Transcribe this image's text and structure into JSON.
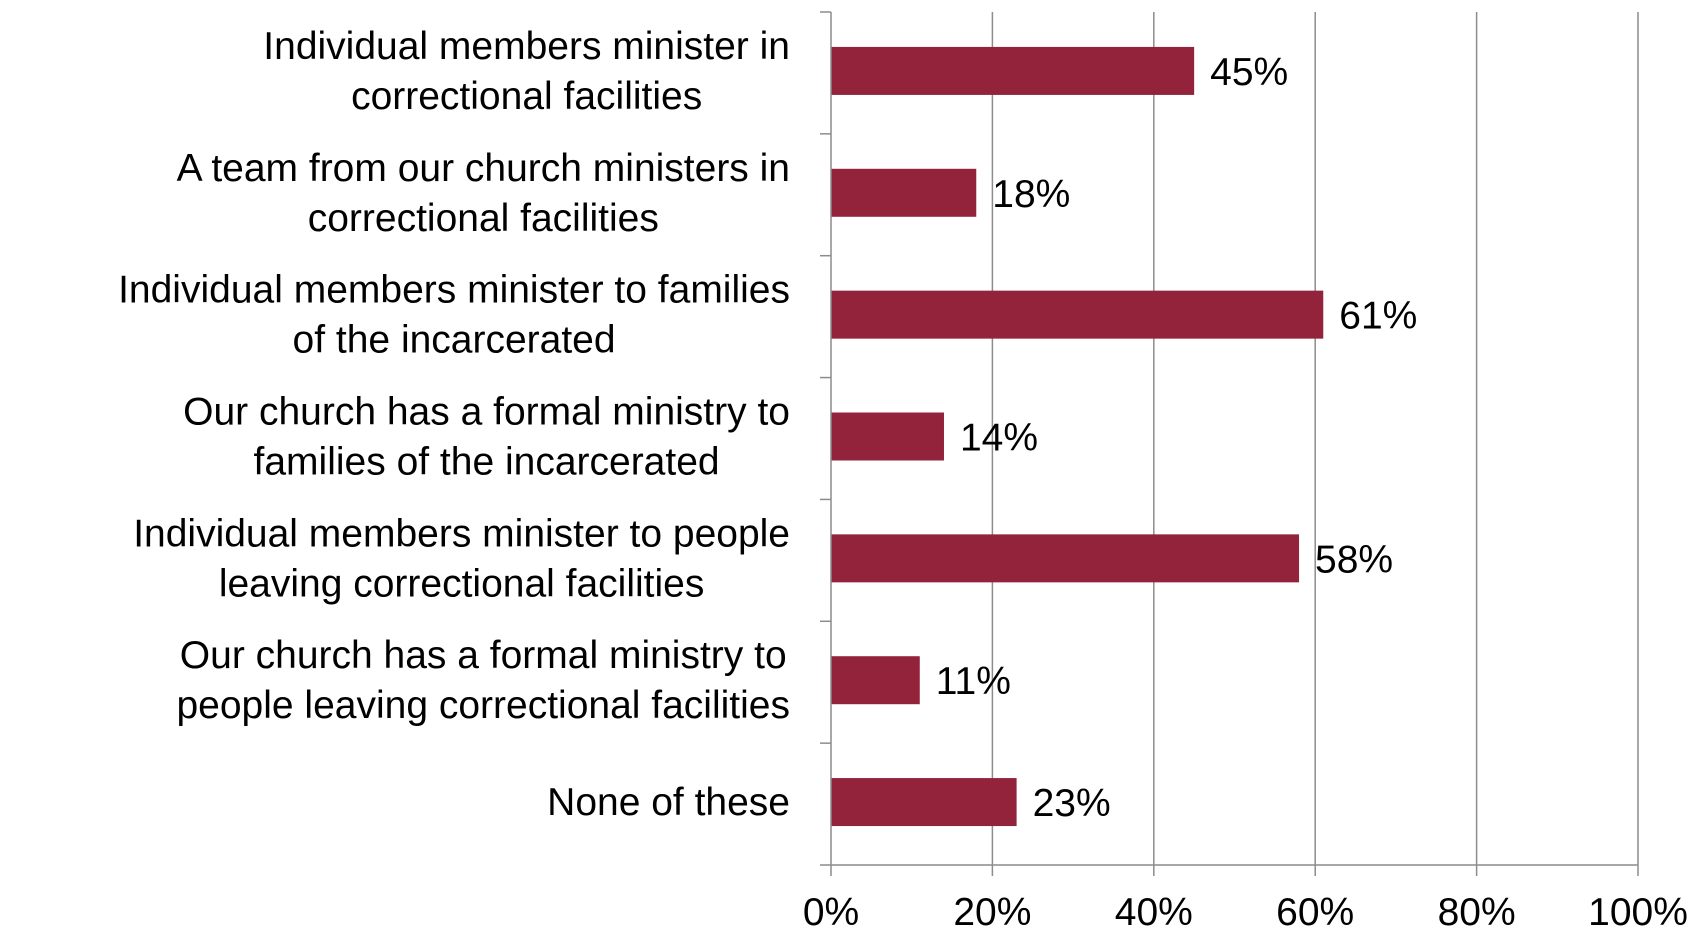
{
  "chart_data": {
    "type": "bar",
    "orientation": "horizontal",
    "categories": [
      [
        "Individual members minister in",
        "correctional facilities"
      ],
      [
        "A team from our church ministers in",
        "correctional facilities"
      ],
      [
        "Individual members minister to families",
        "of the incarcerated"
      ],
      [
        "Our church has a formal ministry to",
        "families of the incarcerated"
      ],
      [
        "Individual members minister to people",
        "leaving correctional facilities"
      ],
      [
        "Our church has a formal ministry to",
        "people leaving correctional facilities"
      ],
      [
        "None of these"
      ]
    ],
    "values": [
      45,
      18,
      61,
      14,
      58,
      11,
      23
    ],
    "data_labels": [
      "45%",
      "18%",
      "61%",
      "14%",
      "58%",
      "11%",
      "23%"
    ],
    "x_ticks": [
      0,
      20,
      40,
      60,
      80,
      100
    ],
    "x_tick_labels": [
      "0%",
      "20%",
      "40%",
      "60%",
      "80%",
      "100%"
    ],
    "xlim": [
      0,
      100
    ],
    "title": "",
    "xlabel": "",
    "ylabel": "",
    "grid": "vertical",
    "legend": "none",
    "colors": {
      "bar": "#92233A",
      "grid": "#8c8c8c",
      "axis": "#8c8c8c",
      "text": "#000000"
    }
  }
}
